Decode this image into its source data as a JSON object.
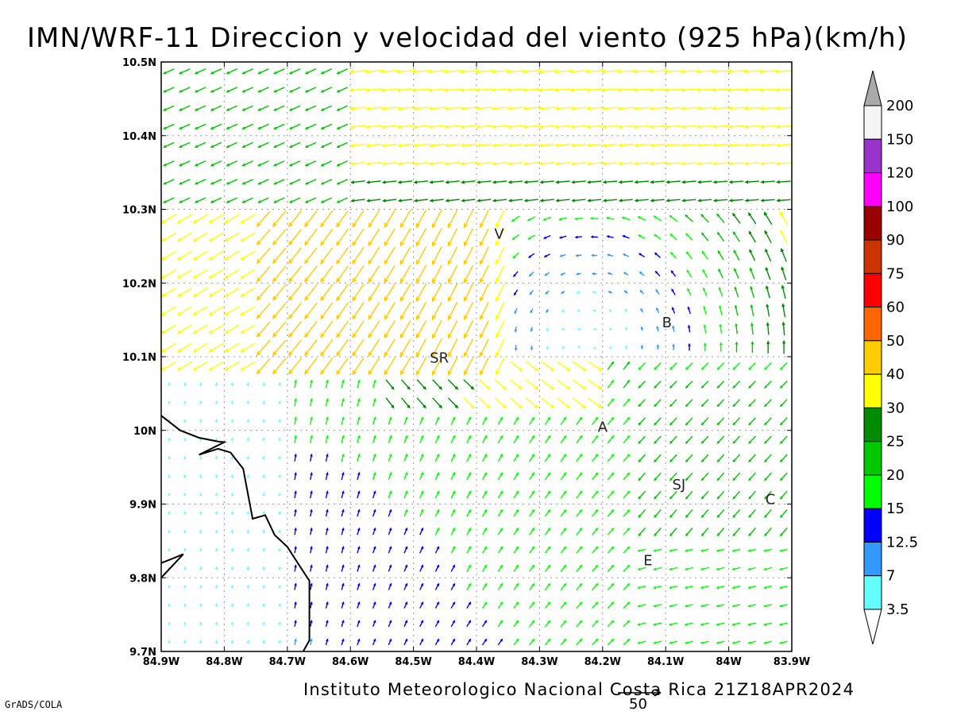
{
  "title": "IMN/WRF-11 Direccion y velocidad del viento (925 hPa)(km/h)",
  "footer": "Instituto Meteorologico Nacional Costa Rica 21Z18APR2024",
  "credit": "GrADS/COLA",
  "reference_vector": {
    "label": "50",
    "speed": 50
  },
  "map": {
    "lon_range": [
      -84.9,
      -83.9
    ],
    "lat_range": [
      9.7,
      10.5
    ],
    "grid": true,
    "x_ticks": [
      {
        "value": -84.9,
        "label": "84.9W"
      },
      {
        "value": -84.8,
        "label": "84.8W"
      },
      {
        "value": -84.7,
        "label": "84.7W"
      },
      {
        "value": -84.6,
        "label": "84.6W"
      },
      {
        "value": -84.5,
        "label": "84.5W"
      },
      {
        "value": -84.4,
        "label": "84.4W"
      },
      {
        "value": -84.3,
        "label": "84.3W"
      },
      {
        "value": -84.2,
        "label": "84.2W"
      },
      {
        "value": -84.1,
        "label": "84.1W"
      },
      {
        "value": -84.0,
        "label": "84W"
      },
      {
        "value": -83.9,
        "label": "83.9W"
      }
    ],
    "y_ticks": [
      {
        "value": 10.5,
        "label": "10.5N"
      },
      {
        "value": 10.4,
        "label": "10.4N"
      },
      {
        "value": 10.3,
        "label": "10.3N"
      },
      {
        "value": 10.2,
        "label": "10.2N"
      },
      {
        "value": 10.1,
        "label": "10.1N"
      },
      {
        "value": 10.0,
        "label": "10N"
      },
      {
        "value": 9.9,
        "label": "9.9N"
      },
      {
        "value": 9.8,
        "label": "9.8N"
      },
      {
        "value": 9.7,
        "label": "9.7N"
      }
    ],
    "cities": [
      {
        "label": "V",
        "lon": -84.364,
        "lat": 10.26
      },
      {
        "label": "B",
        "lon": -84.098,
        "lat": 10.14
      },
      {
        "label": "SR",
        "lon": -84.459,
        "lat": 10.092
      },
      {
        "label": "A",
        "lon": -84.2,
        "lat": 9.998
      },
      {
        "label": "SJ",
        "lon": -84.079,
        "lat": 9.92
      },
      {
        "label": "C",
        "lon": -83.934,
        "lat": 9.9
      },
      {
        "label": "E",
        "lon": -84.128,
        "lat": 9.817
      }
    ],
    "coastline": [
      [
        -84.9,
        10.02
      ],
      [
        -84.87,
        10.0
      ],
      [
        -84.84,
        9.99
      ],
      [
        -84.81,
        9.985
      ],
      [
        -84.8,
        9.984
      ],
      [
        -84.84,
        9.967
      ],
      [
        -84.81,
        9.975
      ],
      [
        -84.79,
        9.97
      ],
      [
        -84.77,
        9.948
      ],
      [
        -84.755,
        9.88
      ],
      [
        -84.735,
        9.885
      ],
      [
        -84.72,
        9.858
      ],
      [
        -84.7,
        9.842
      ],
      [
        -84.685,
        9.822
      ],
      [
        -84.665,
        9.796
      ],
      [
        -84.665,
        9.755
      ],
      [
        -84.665,
        9.728
      ],
      [
        -84.665,
        9.715
      ],
      [
        -84.675,
        9.7
      ]
    ],
    "coastline_segment2": [
      [
        -84.9,
        9.82
      ],
      [
        -84.885,
        9.825
      ],
      [
        -84.865,
        9.832
      ],
      [
        -84.9,
        9.8
      ]
    ]
  },
  "colorbar": {
    "levels": [
      "200",
      "150",
      "120",
      "100",
      "90",
      "75",
      "60",
      "50",
      "40",
      "30",
      "25",
      "20",
      "15",
      "12.5",
      "7",
      "3.5"
    ],
    "colors": [
      "#f5f5f5",
      "#9a33cc",
      "#ff00ff",
      "#990000",
      "#cc3300",
      "#ff0000",
      "#ff6600",
      "#ffcc00",
      "#ffff00",
      "#008c00",
      "#00c800",
      "#00ff00",
      "#0000ff",
      "#3399ff",
      "#66ffff"
    ],
    "top_arrow_color": "#aaaaaa",
    "bottom_arrow_color": "#ffffff"
  },
  "chart_data": {
    "type": "vector-field",
    "variable": "Direccion y velocidad del viento (925 hPa)(km/h)",
    "grid_step_deg": 0.025,
    "note_regions": [
      {
        "area": "northern strip lat>10.3",
        "direction_from": "east",
        "speed_kmh": "15-40"
      },
      {
        "area": "northwest 84.9W-84.6W lat 10.1-10.3",
        "direction_from": "northeast",
        "speed_kmh": "30-60"
      },
      {
        "area": "convergence near SR",
        "direction_from": "north-northeast",
        "speed_kmh": "40-60"
      },
      {
        "area": "southwest lat<10.05 lon<84.7W",
        "direction_from": "south",
        "speed_kmh": "3.5-15"
      },
      {
        "area": "central south",
        "direction_from": "south-southwest",
        "speed_kmh": "7-25"
      },
      {
        "area": "southeast near SJ and C",
        "direction_from": "northeast",
        "speed_kmh": "15-40"
      }
    ]
  }
}
